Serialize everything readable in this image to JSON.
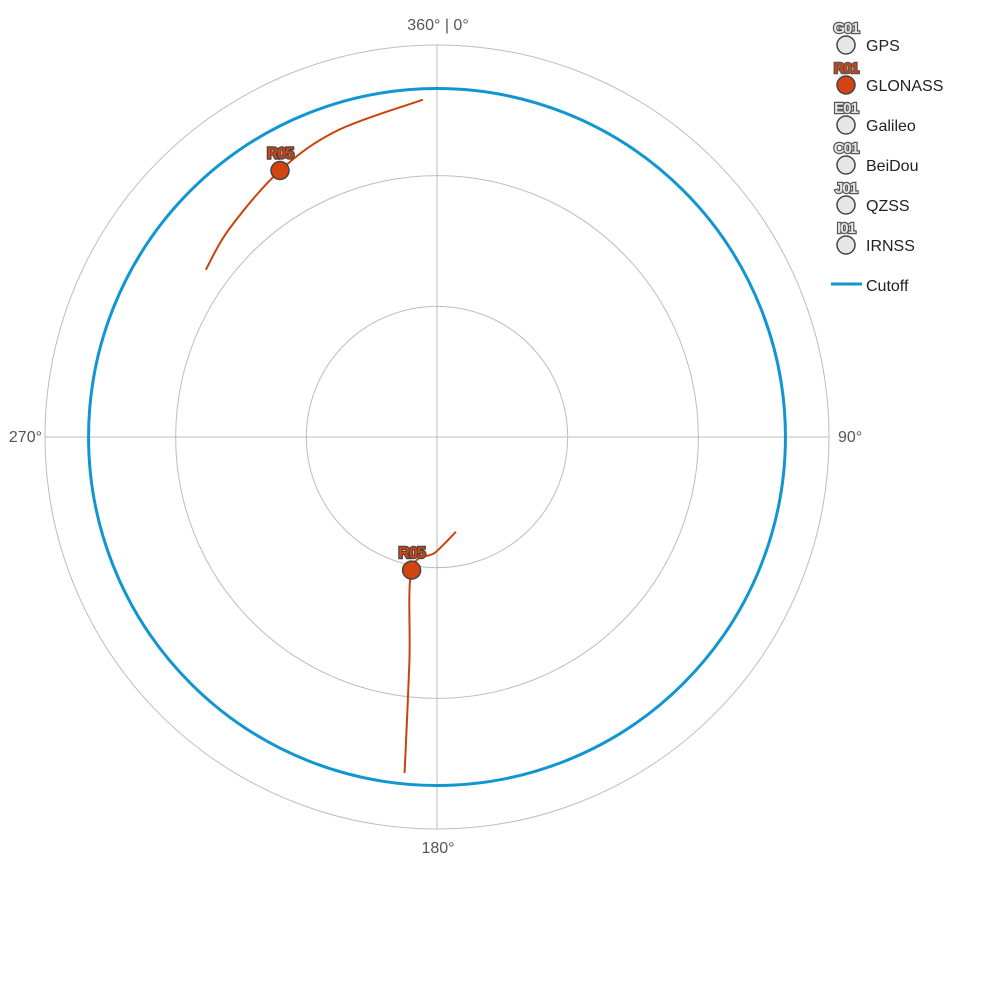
{
  "chart_data": {
    "type": "polar-scatter",
    "title": "",
    "azimuth_labels": [
      {
        "azimuth": 0,
        "text": "360° | 0°"
      },
      {
        "azimuth": 90,
        "text": "90°"
      },
      {
        "azimuth": 180,
        "text": "180°"
      },
      {
        "azimuth": 270,
        "text": "270°"
      }
    ],
    "elevation_rings": [
      0,
      30,
      60
    ],
    "cutoff_elevation": 10,
    "cutoff_color": "#1196d1",
    "satellites": [
      {
        "id": "R05",
        "system": "GLONASS",
        "current": {
          "azimuth": 329.5,
          "elevation": 19
        },
        "track": [
          {
            "azimuth": 357.6,
            "elevation": 12.5
          },
          {
            "azimuth": 342,
            "elevation": 16
          },
          {
            "azimuth": 329.5,
            "elevation": 19
          },
          {
            "azimuth": 315,
            "elevation": 22.5
          },
          {
            "azimuth": 305.9,
            "elevation": 24.5
          }
        ]
      },
      {
        "id": "R05",
        "system": "GLONASS",
        "current": {
          "azimuth": 190.8,
          "elevation": 58.9
        },
        "track": [
          {
            "azimuth": 168.7,
            "elevation": 67.8
          },
          {
            "azimuth": 180.8,
            "elevation": 63.5
          },
          {
            "azimuth": 190.8,
            "elevation": 58.9
          },
          {
            "azimuth": 187,
            "elevation": 38
          },
          {
            "azimuth": 185.5,
            "elevation": 12.5
          }
        ]
      }
    ],
    "legend": {
      "position": "top-right",
      "items": [
        {
          "code": "G01",
          "label": "GPS",
          "color": "#e6e6e6",
          "code_color": "#e6e6e6"
        },
        {
          "code": "R01",
          "label": "GLONASS",
          "color": "#d54310",
          "code_color": "#d54310"
        },
        {
          "code": "E01",
          "label": "Galileo",
          "color": "#e6e6e6",
          "code_color": "#e6e6e6"
        },
        {
          "code": "C01",
          "label": "BeiDou",
          "color": "#e6e6e6",
          "code_color": "#e6e6e6"
        },
        {
          "code": "J01",
          "label": "QZSS",
          "color": "#e6e6e6",
          "code_color": "#e6e6e6"
        },
        {
          "code": "I01",
          "label": "IRNSS",
          "color": "#e6e6e6",
          "code_color": "#e6e6e6"
        }
      ],
      "cutoff_label": "Cutoff"
    },
    "colors": {
      "glonass": "#d54310",
      "track": "#c9440c",
      "grid": "#bdbdbd",
      "marker_stroke": "#444444"
    }
  }
}
